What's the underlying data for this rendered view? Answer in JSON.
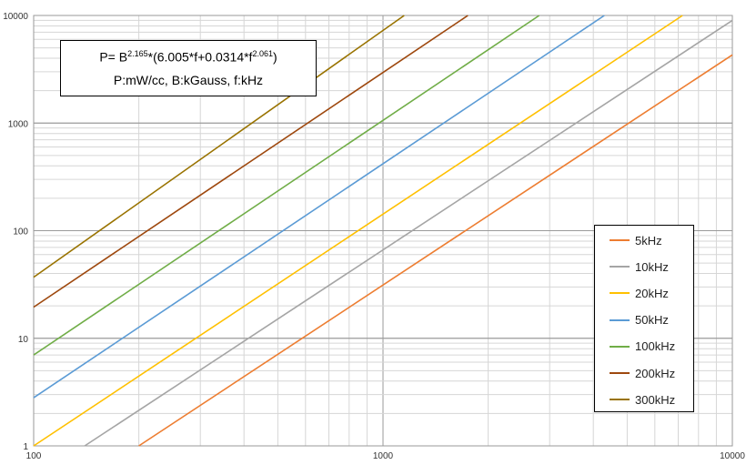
{
  "chart_data": {
    "type": "line",
    "title": "",
    "xlabel": "",
    "ylabel": "",
    "xscale": "log",
    "yscale": "log",
    "xlim": [
      100,
      10000
    ],
    "ylim": [
      1,
      10000
    ],
    "grid": true,
    "legend_position": "right",
    "x_tick_labels": [
      "100",
      "1000",
      "10000"
    ],
    "y_tick_labels": [
      "1",
      "10",
      "100",
      "1000",
      "10000"
    ],
    "annotation": {
      "formula_prefix": "P= B",
      "exp_b": "2.165",
      "formula_mid": "*(6.005*f+0.0314*f",
      "exp_f": "2.061",
      "formula_suffix": ")",
      "units": "P:mW/cc, B:kGauss, f:kHz"
    },
    "series": [
      {
        "name": "5kHz",
        "color": "#ed7d31",
        "x": [
          200,
          10000
        ],
        "y": [
          1,
          4300
        ]
      },
      {
        "name": "10kHz",
        "color": "#a5a5a5",
        "x": [
          140,
          10000
        ],
        "y": [
          1,
          9000
        ]
      },
      {
        "name": "20kHz",
        "color": "#ffc000",
        "x": [
          100,
          7200
        ],
        "y": [
          1,
          10000
        ]
      },
      {
        "name": "50kHz",
        "color": "#5b9bd5",
        "x": [
          100,
          4300
        ],
        "y": [
          2.8,
          10000
        ]
      },
      {
        "name": "100kHz",
        "color": "#70ad47",
        "x": [
          100,
          2800
        ],
        "y": [
          7,
          10000
        ]
      },
      {
        "name": "200kHz",
        "color": "#9e480e",
        "x": [
          100,
          1750
        ],
        "y": [
          19.5,
          10000
        ]
      },
      {
        "name": "300kHz",
        "color": "#997300",
        "x": [
          100,
          1150
        ],
        "y": [
          37,
          10000
        ]
      }
    ]
  }
}
